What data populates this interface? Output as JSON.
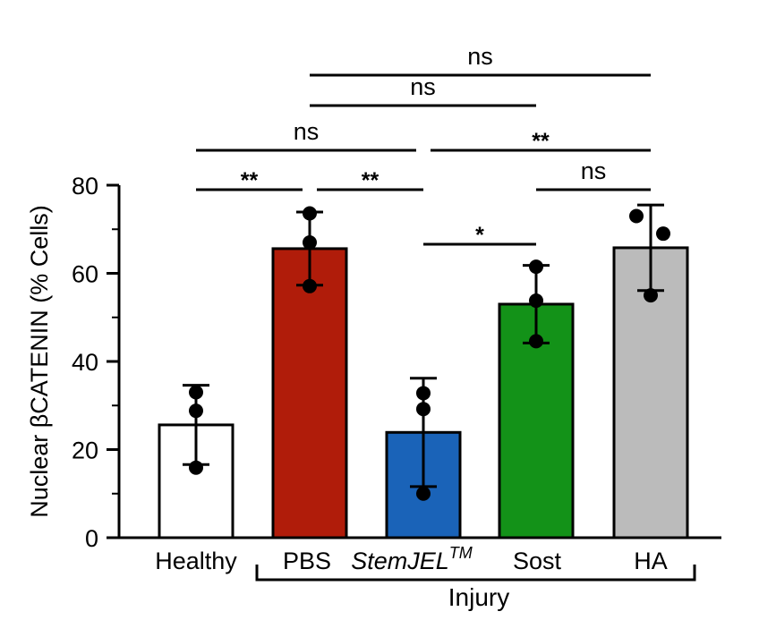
{
  "chart_data": {
    "type": "bar",
    "ylabel": "Nuclear βCATENIN  (% Cells)",
    "ylim": [
      0,
      80
    ],
    "yticks": [
      0,
      20,
      40,
      60,
      80
    ],
    "categories": [
      {
        "name": "Healthy",
        "prefix": "",
        "italic": "",
        "sup": "",
        "suffix": "Healthy"
      },
      {
        "name": "PBS",
        "prefix": "",
        "italic": "",
        "sup": "",
        "suffix": "PBS"
      },
      {
        "name": "StemJEL™",
        "prefix": "",
        "italic": "StemJEL",
        "sup": "TM",
        "suffix": ""
      },
      {
        "name": "Sost",
        "prefix": "",
        "italic": "",
        "sup": "",
        "suffix": "Sost"
      },
      {
        "name": "HA",
        "prefix": "",
        "italic": "",
        "sup": "",
        "suffix": "HA"
      }
    ],
    "values": [
      25.6,
      65.6,
      23.9,
      53.0,
      65.8
    ],
    "sd": [
      9.0,
      8.3,
      12.3,
      8.8,
      9.7
    ],
    "points": [
      [
        33.0,
        28.8,
        15.9
      ],
      [
        73.6,
        67.0,
        57.1
      ],
      [
        32.8,
        29.2,
        10.0
      ],
      [
        61.5,
        53.8,
        44.6
      ],
      [
        73.0,
        69.0,
        55.0
      ]
    ],
    "colors": [
      "#ffffff",
      "#b01c0a",
      "#1a63b8",
      "#139218",
      "#bbbbbb"
    ],
    "group_bracket": {
      "label": "Injury",
      "from": 1,
      "to": 4
    },
    "significance": [
      {
        "from": 0,
        "to": 1,
        "label": "**",
        "level": 1
      },
      {
        "from": 1,
        "to": 2,
        "label": "**",
        "level": 1
      },
      {
        "from": 3,
        "to": 4,
        "label": "ns",
        "level": 1
      },
      {
        "from": 2,
        "to": 3,
        "label": "*",
        "level": 0
      },
      {
        "from": 0,
        "to": 2,
        "label": "ns",
        "level": 2
      },
      {
        "from": 2,
        "to": 4,
        "label": "**",
        "level": 2
      },
      {
        "from": 1,
        "to": 3,
        "label": "ns",
        "level": 3
      },
      {
        "from": 1,
        "to": 4,
        "label": "ns",
        "level": 4
      }
    ]
  }
}
